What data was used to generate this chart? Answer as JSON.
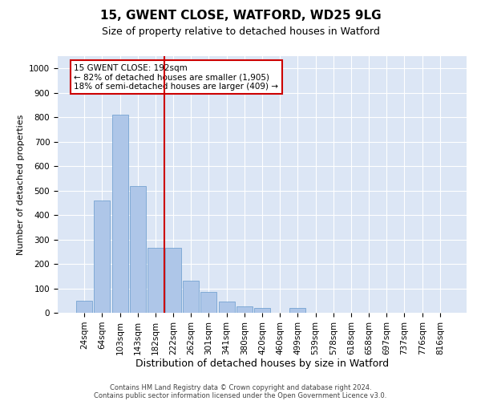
{
  "title": "15, GWENT CLOSE, WATFORD, WD25 9LG",
  "subtitle": "Size of property relative to detached houses in Watford",
  "xlabel": "Distribution of detached houses by size in Watford",
  "ylabel": "Number of detached properties",
  "categories": [
    "24sqm",
    "64sqm",
    "103sqm",
    "143sqm",
    "182sqm",
    "222sqm",
    "262sqm",
    "301sqm",
    "341sqm",
    "380sqm",
    "420sqm",
    "460sqm",
    "499sqm",
    "539sqm",
    "578sqm",
    "618sqm",
    "658sqm",
    "697sqm",
    "737sqm",
    "776sqm",
    "816sqm"
  ],
  "values": [
    50,
    460,
    810,
    520,
    265,
    265,
    130,
    85,
    45,
    25,
    20,
    0,
    20,
    0,
    0,
    0,
    0,
    0,
    0,
    0,
    0
  ],
  "bar_color": "#aec6e8",
  "bar_edge_color": "#6699cc",
  "vline_index": 4.5,
  "vline_color": "#cc0000",
  "annotation_text": "15 GWENT CLOSE: 192sqm\n← 82% of detached houses are smaller (1,905)\n18% of semi-detached houses are larger (409) →",
  "annotation_box_color": "#ffffff",
  "annotation_box_edge": "#cc0000",
  "ylim": [
    0,
    1050
  ],
  "yticks": [
    0,
    100,
    200,
    300,
    400,
    500,
    600,
    700,
    800,
    900,
    1000
  ],
  "background_color": "#dce6f5",
  "footer1": "Contains HM Land Registry data © Crown copyright and database right 2024.",
  "footer2": "Contains public sector information licensed under the Open Government Licence v3.0.",
  "title_fontsize": 11,
  "subtitle_fontsize": 9,
  "xlabel_fontsize": 9,
  "ylabel_fontsize": 8,
  "tick_fontsize": 7.5
}
